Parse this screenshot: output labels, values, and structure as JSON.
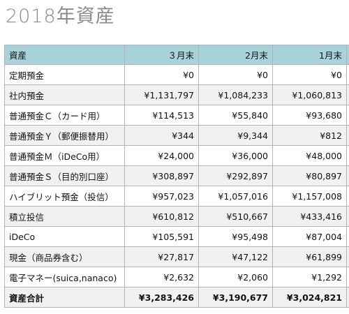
{
  "title": "2018年資産",
  "columns": [
    "資産",
    "３月末",
    "2月末",
    "1月末"
  ],
  "rows": [
    {
      "label": "定期預金",
      "mar": "¥0",
      "feb": "¥0",
      "jan": "¥0"
    },
    {
      "label": "社内預金",
      "mar": "¥1,131,797",
      "feb": "¥1,084,233",
      "jan": "¥1,060,813"
    },
    {
      "label": "普通預金Ｃ（カード用）",
      "mar": "¥114,513",
      "feb": "¥55,840",
      "jan": "¥93,680"
    },
    {
      "label": "普通預金Ｙ（郵便振替用）",
      "mar": "¥344",
      "feb": "¥9,344",
      "jan": "¥812"
    },
    {
      "label": "普通預金Ｍ（iDeCo用）",
      "mar": "¥24,000",
      "feb": "¥36,000",
      "jan": "¥48,000"
    },
    {
      "label": "普通預金Ｓ（目的別口座）",
      "mar": "¥308,897",
      "feb": "¥292,897",
      "jan": "¥80,897"
    },
    {
      "label": "ハイブリット預金（投信）",
      "mar": "¥957,023",
      "feb": "¥1,057,016",
      "jan": "¥1,157,008"
    },
    {
      "label": "積立投信",
      "mar": "¥610,812",
      "feb": "¥510,667",
      "jan": "¥433,416"
    },
    {
      "label": "iDeCo",
      "mar": "¥105,591",
      "feb": "¥95,498",
      "jan": "¥87,004"
    },
    {
      "label": "現金（商品券含む）",
      "mar": "¥27,817",
      "feb": "¥47,122",
      "jan": "¥61,899"
    },
    {
      "label": "電子マネー(suica,nanaco)",
      "mar": "¥2,632",
      "feb": "¥2,060",
      "jan": "¥1,292"
    }
  ],
  "total": {
    "label": "資産合計",
    "mar": "¥3,283,426",
    "feb": "¥3,190,677",
    "jan": "¥3,024,821"
  }
}
